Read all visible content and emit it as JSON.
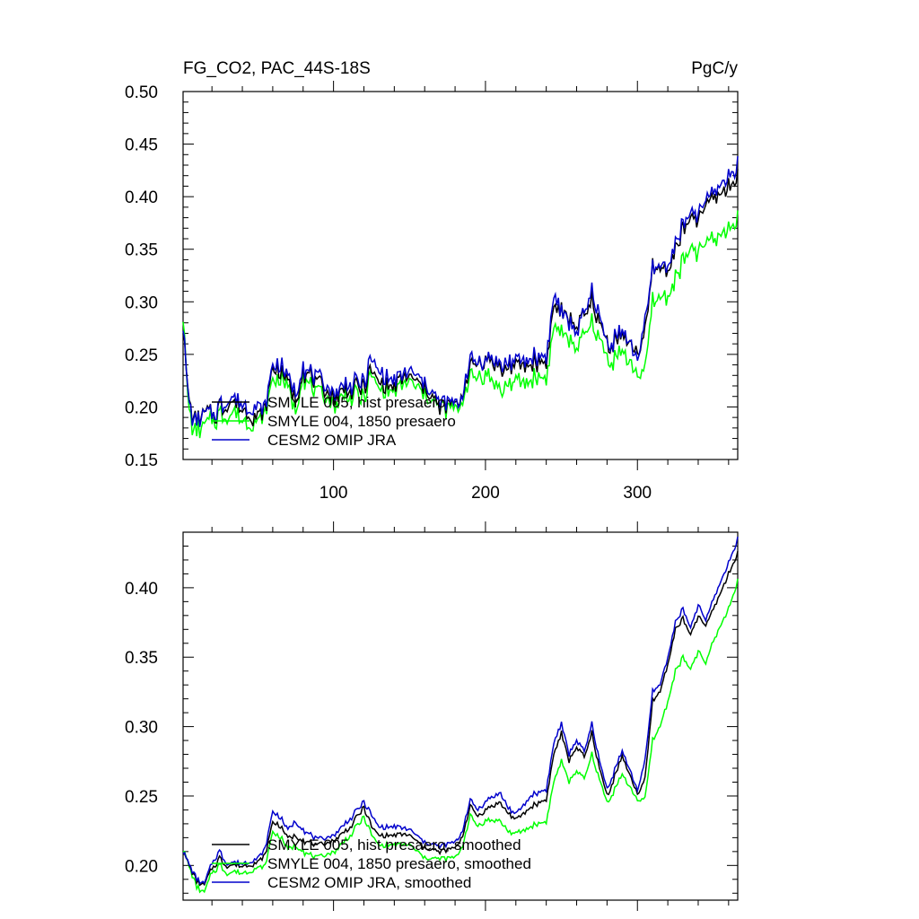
{
  "chart_data": [
    {
      "type": "line",
      "title": "FG_CO2, PAC_44S-18S",
      "units": "PgC/y",
      "xlim": [
        1,
        366
      ],
      "ylim": [
        0.15,
        0.5
      ],
      "xticks": [
        100,
        200,
        300
      ],
      "yticks": [
        0.15,
        0.2,
        0.25,
        0.3,
        0.35,
        0.4,
        0.45,
        0.5
      ],
      "ytick_labels": [
        "0.15",
        "0.20",
        "0.25",
        "0.30",
        "0.35",
        "0.40",
        "0.45",
        "0.50"
      ],
      "xtick_labels": [
        "100",
        "200",
        "300"
      ],
      "legend_position": "bottom-left",
      "series": [
        {
          "name": "SMYLE 005, hist presaero",
          "color": "#000000"
        },
        {
          "name": "SMYLE 004, 1850 presaero",
          "color": "#00ff00"
        },
        {
          "name": "CESM2 OMIP JRA",
          "color": "#0000cc"
        }
      ],
      "anchors": {
        "x": [
          1,
          4,
          8,
          15,
          22,
          30,
          40,
          50,
          55,
          60,
          70,
          75,
          80,
          90,
          100,
          110,
          120,
          125,
          130,
          140,
          150,
          160,
          170,
          180,
          185,
          190,
          200,
          210,
          215,
          220,
          230,
          240,
          245,
          250,
          260,
          270,
          275,
          280,
          290,
          300,
          305,
          310,
          320,
          330,
          340,
          350,
          360,
          366
        ],
        "SMYLE 005, hist presaero": [
          0.28,
          0.215,
          0.185,
          0.19,
          0.195,
          0.205,
          0.2,
          0.19,
          0.2,
          0.24,
          0.225,
          0.21,
          0.235,
          0.22,
          0.21,
          0.215,
          0.22,
          0.235,
          0.225,
          0.22,
          0.23,
          0.215,
          0.2,
          0.2,
          0.215,
          0.235,
          0.245,
          0.235,
          0.24,
          0.235,
          0.24,
          0.245,
          0.295,
          0.29,
          0.275,
          0.3,
          0.28,
          0.26,
          0.265,
          0.255,
          0.27,
          0.33,
          0.33,
          0.37,
          0.38,
          0.4,
          0.41,
          0.42
        ],
        "SMYLE 004, 1850 presaero": [
          0.29,
          0.21,
          0.175,
          0.18,
          0.19,
          0.195,
          0.19,
          0.185,
          0.195,
          0.23,
          0.22,
          0.2,
          0.23,
          0.21,
          0.205,
          0.21,
          0.21,
          0.23,
          0.22,
          0.215,
          0.225,
          0.21,
          0.2,
          0.195,
          0.21,
          0.225,
          0.23,
          0.215,
          0.225,
          0.22,
          0.225,
          0.23,
          0.275,
          0.27,
          0.255,
          0.28,
          0.265,
          0.245,
          0.25,
          0.235,
          0.235,
          0.3,
          0.305,
          0.34,
          0.35,
          0.36,
          0.37,
          0.38
        ],
        "CESM2 OMIP JRA": [
          0.28,
          0.215,
          0.185,
          0.19,
          0.195,
          0.21,
          0.205,
          0.2,
          0.2,
          0.245,
          0.23,
          0.215,
          0.24,
          0.225,
          0.215,
          0.22,
          0.225,
          0.245,
          0.235,
          0.225,
          0.235,
          0.22,
          0.205,
          0.2,
          0.215,
          0.24,
          0.245,
          0.24,
          0.245,
          0.24,
          0.245,
          0.25,
          0.305,
          0.29,
          0.27,
          0.31,
          0.285,
          0.26,
          0.27,
          0.25,
          0.28,
          0.33,
          0.335,
          0.375,
          0.385,
          0.405,
          0.42,
          0.43
        ]
      }
    },
    {
      "type": "line",
      "title": "",
      "xlim": [
        1,
        366
      ],
      "ylim": [
        0.175,
        0.44
      ],
      "xticks": [
        100,
        200,
        300
      ],
      "yticks": [
        0.2,
        0.25,
        0.3,
        0.35,
        0.4
      ],
      "ytick_labels": [
        "0.20",
        "0.25",
        "0.30",
        "0.35",
        "0.40"
      ],
      "legend_position": "bottom-left",
      "series": [
        {
          "name": "SMYLE 005, hist presaero, smoothed",
          "color": "#000000"
        },
        {
          "name": "SMYLE 004, 1850 presaero, smoothed",
          "color": "#00ff00"
        },
        {
          "name": "CESM2 OMIP JRA, smoothed",
          "color": "#0000cc"
        }
      ],
      "anchors": {
        "x": [
          1,
          10,
          15,
          20,
          25,
          30,
          40,
          50,
          55,
          60,
          65,
          70,
          75,
          80,
          90,
          100,
          110,
          120,
          125,
          130,
          140,
          150,
          160,
          170,
          180,
          185,
          190,
          195,
          200,
          210,
          215,
          220,
          230,
          240,
          245,
          250,
          255,
          260,
          265,
          270,
          275,
          280,
          290,
          300,
          305,
          310,
          315,
          320,
          325,
          330,
          335,
          340,
          345,
          350,
          360,
          366
        ],
        "SMYLE 005, hist presaero, smoothed": [
          0.21,
          0.188,
          0.185,
          0.198,
          0.205,
          0.2,
          0.2,
          0.202,
          0.208,
          0.232,
          0.228,
          0.22,
          0.222,
          0.218,
          0.214,
          0.218,
          0.226,
          0.242,
          0.228,
          0.222,
          0.222,
          0.222,
          0.212,
          0.21,
          0.212,
          0.222,
          0.242,
          0.235,
          0.24,
          0.245,
          0.238,
          0.232,
          0.242,
          0.248,
          0.28,
          0.295,
          0.275,
          0.285,
          0.278,
          0.295,
          0.27,
          0.25,
          0.278,
          0.252,
          0.262,
          0.318,
          0.325,
          0.345,
          0.37,
          0.378,
          0.365,
          0.38,
          0.372,
          0.385,
          0.41,
          0.425
        ],
        "SMYLE 004, 1850 presaero, smoothed": [
          0.212,
          0.184,
          0.18,
          0.195,
          0.2,
          0.195,
          0.195,
          0.198,
          0.2,
          0.225,
          0.22,
          0.212,
          0.215,
          0.21,
          0.205,
          0.21,
          0.22,
          0.235,
          0.222,
          0.215,
          0.215,
          0.215,
          0.205,
          0.205,
          0.205,
          0.215,
          0.235,
          0.228,
          0.232,
          0.232,
          0.225,
          0.222,
          0.228,
          0.232,
          0.26,
          0.275,
          0.26,
          0.268,
          0.262,
          0.28,
          0.262,
          0.245,
          0.265,
          0.248,
          0.248,
          0.29,
          0.3,
          0.318,
          0.34,
          0.35,
          0.34,
          0.355,
          0.345,
          0.362,
          0.385,
          0.405
        ],
        "CESM2 OMIP JRA, smoothed": [
          0.21,
          0.19,
          0.186,
          0.202,
          0.21,
          0.202,
          0.202,
          0.205,
          0.212,
          0.24,
          0.234,
          0.226,
          0.232,
          0.226,
          0.218,
          0.222,
          0.232,
          0.246,
          0.236,
          0.228,
          0.228,
          0.226,
          0.216,
          0.214,
          0.216,
          0.226,
          0.246,
          0.24,
          0.246,
          0.252,
          0.242,
          0.236,
          0.25,
          0.255,
          0.288,
          0.302,
          0.28,
          0.29,
          0.282,
          0.302,
          0.275,
          0.255,
          0.282,
          0.255,
          0.275,
          0.325,
          0.33,
          0.35,
          0.375,
          0.385,
          0.37,
          0.388,
          0.376,
          0.392,
          0.418,
          0.435
        ]
      }
    }
  ]
}
